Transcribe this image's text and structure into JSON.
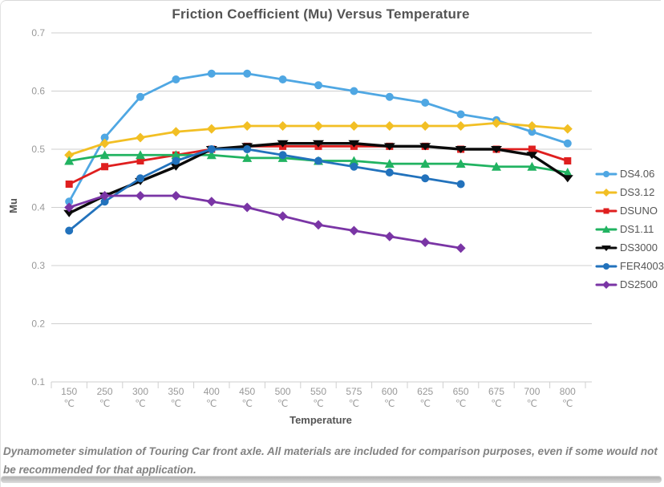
{
  "chart": {
    "title": "Friction Coefficient (Mu) Versus Temperature",
    "xlabel": "Temperature",
    "ylabel": "Mu"
  },
  "chart_data": {
    "type": "line",
    "title": "Friction Coefficient (Mu) Versus Temperature",
    "xlabel": "Temperature",
    "ylabel": "Mu",
    "x_unit": "℃",
    "categories": [
      "150",
      "250",
      "300",
      "350",
      "400",
      "450",
      "500",
      "550",
      "575",
      "600",
      "625",
      "650",
      "675",
      "700",
      "800"
    ],
    "ylim": [
      0.1,
      0.7
    ],
    "yticks": [
      0.7,
      0.6,
      0.5,
      0.4,
      0.3,
      0.2,
      0.1
    ],
    "grid": "horizontal",
    "legend_position": "right",
    "series": [
      {
        "name": "DS4.06",
        "color": "#4FA7E3",
        "marker": "circle",
        "values": [
          0.41,
          0.52,
          0.59,
          0.62,
          0.63,
          0.63,
          0.62,
          0.61,
          0.6,
          0.59,
          0.58,
          0.56,
          0.55,
          0.53,
          0.51
        ]
      },
      {
        "name": "DS3.12",
        "color": "#F2BF24",
        "marker": "diamond",
        "values": [
          0.49,
          0.51,
          0.52,
          0.53,
          0.535,
          0.54,
          0.54,
          0.54,
          0.54,
          0.54,
          0.54,
          0.54,
          0.545,
          0.54,
          0.535
        ]
      },
      {
        "name": "DSUNO",
        "color": "#DF1F1F",
        "marker": "square",
        "values": [
          0.44,
          0.47,
          0.48,
          0.49,
          0.5,
          0.505,
          0.505,
          0.505,
          0.505,
          0.505,
          0.505,
          0.5,
          0.5,
          0.5,
          0.48
        ]
      },
      {
        "name": "DS1.11",
        "color": "#21B361",
        "marker": "triangle-up",
        "values": [
          0.48,
          0.49,
          0.49,
          0.49,
          0.49,
          0.485,
          0.485,
          0.48,
          0.48,
          0.475,
          0.475,
          0.475,
          0.47,
          0.47,
          0.46
        ]
      },
      {
        "name": "DS3000",
        "color": "#0A0A0A",
        "marker": "triangle-down",
        "values": [
          0.39,
          0.42,
          0.445,
          0.47,
          0.5,
          0.505,
          0.51,
          0.51,
          0.51,
          0.505,
          0.505,
          0.5,
          0.5,
          0.49,
          0.45
        ]
      },
      {
        "name": "FER4003",
        "color": "#2272BC",
        "marker": "circle",
        "values": [
          0.36,
          0.41,
          0.45,
          0.48,
          0.5,
          0.5,
          0.49,
          0.48,
          0.47,
          0.46,
          0.45,
          0.44,
          null,
          null,
          null
        ]
      },
      {
        "name": "DS2500",
        "color": "#7A35A5",
        "marker": "diamond",
        "values": [
          0.4,
          0.42,
          0.42,
          0.42,
          0.41,
          0.4,
          0.385,
          0.37,
          0.36,
          0.35,
          0.34,
          0.33,
          null,
          null,
          null
        ]
      }
    ]
  },
  "caption": "Dynamometer simulation of Touring Car front axle. All materials are included for comparison purposes, even if some would not be recommended for that application.",
  "colors": {
    "gridline": "#cfcfcf",
    "tick_label": "#999999",
    "axis_title": "#555555",
    "chart_title": "#545454"
  }
}
